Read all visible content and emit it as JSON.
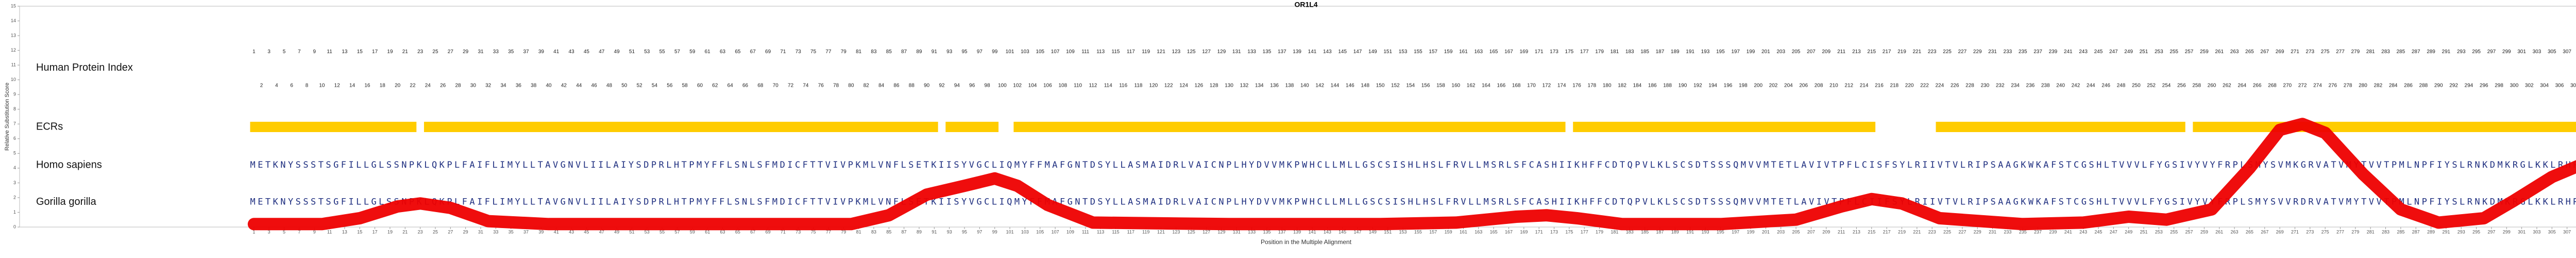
{
  "chart_data": {
    "type": "line",
    "title": "OR1L4",
    "x_label": "Position in the Multiple Alignment",
    "y_label": "Relative Substitution Score",
    "xlim": [
      -30,
      312
    ],
    "ylim": [
      0,
      15
    ],
    "yticks": [
      0,
      1,
      2,
      3,
      4,
      5,
      6,
      7,
      8,
      9,
      10,
      11,
      12,
      13,
      14,
      15
    ],
    "xticks": [
      1,
      3,
      5,
      7,
      9,
      11,
      13,
      15,
      17,
      19,
      21,
      23,
      25,
      27,
      29,
      31,
      33,
      35,
      37,
      39,
      41,
      43,
      45,
      47,
      49,
      51,
      53,
      55,
      57,
      59,
      61,
      63,
      65,
      67,
      69,
      71,
      73,
      75,
      77,
      79,
      81,
      83,
      85,
      87,
      89,
      91,
      93,
      95,
      97,
      99,
      101,
      103,
      105,
      107,
      109,
      111,
      113,
      115,
      117,
      119,
      121,
      123,
      125,
      127,
      129,
      131,
      133,
      135,
      137,
      139,
      141,
      143,
      145,
      147,
      149,
      151,
      153,
      155,
      157,
      159,
      161,
      163,
      165,
      167,
      169,
      171,
      173,
      175,
      177,
      179,
      181,
      183,
      185,
      187,
      189,
      191,
      193,
      195,
      197,
      199,
      201,
      203,
      205,
      207,
      209,
      211,
      213,
      215,
      217,
      219,
      221,
      223,
      225,
      227,
      229,
      231,
      233,
      235,
      237,
      239,
      241,
      243,
      245,
      247,
      249,
      251,
      253,
      255,
      257,
      259,
      261,
      263,
      265,
      267,
      269,
      271,
      273,
      275,
      277,
      279,
      281,
      283,
      285,
      287,
      289,
      291,
      293,
      295,
      297,
      299,
      301,
      303,
      305,
      307,
      309,
      311
    ],
    "series": [
      {
        "color": "#ee0000",
        "x": [
          1,
          10,
          15,
          20,
          23,
          27,
          32,
          40,
          60,
          80,
          85,
          90,
          95,
          99,
          102,
          106,
          112,
          130,
          150,
          160,
          168,
          172,
          176,
          182,
          195,
          205,
          211,
          215,
          219,
          224,
          235,
          243,
          249,
          254,
          260,
          265,
          269,
          272,
          275,
          280,
          285,
          290,
          296,
          300,
          305,
          311
        ],
        "values": [
          0.2,
          0.2,
          0.6,
          1.4,
          1.6,
          1.3,
          0.4,
          0.2,
          0.2,
          0.2,
          0.8,
          2.2,
          2.8,
          3.3,
          2.8,
          1.5,
          0.3,
          0.2,
          0.2,
          0.3,
          0.7,
          0.8,
          0.6,
          0.2,
          0.2,
          0.5,
          1.4,
          1.9,
          1.6,
          0.6,
          0.2,
          0.3,
          0.7,
          0.5,
          1.2,
          4,
          6.6,
          7,
          6.4,
          3.6,
          1.2,
          0.3,
          0.6,
          1.8,
          3.4,
          4.7
        ]
      }
    ],
    "human_protein_index": {
      "label": "Human Protein Index",
      "values": [
        1,
        2,
        3,
        4,
        5,
        6,
        7,
        8,
        9,
        10,
        11,
        12,
        13,
        14,
        15,
        16,
        17,
        18,
        19,
        20,
        21,
        22,
        23,
        24,
        25,
        26,
        27,
        28,
        29,
        30,
        31,
        32,
        33,
        34,
        35,
        36,
        37,
        38,
        39,
        40,
        41,
        42,
        43,
        44,
        45,
        46,
        47,
        48,
        49,
        50,
        51,
        52,
        53,
        54,
        55,
        56,
        57,
        58,
        59,
        60,
        61,
        62,
        63,
        64,
        65,
        66,
        67,
        68,
        69,
        70,
        71,
        72,
        73,
        74,
        75,
        76,
        77,
        78,
        79,
        80,
        81,
        82,
        83,
        84,
        85,
        86,
        87,
        88,
        89,
        90,
        91,
        92,
        93,
        94,
        95,
        96,
        97,
        98,
        99,
        100,
        101,
        102,
        103,
        104,
        105,
        106,
        107,
        108,
        109,
        110,
        111,
        112,
        113,
        114,
        115,
        116,
        117,
        118,
        119,
        120,
        121,
        122,
        123,
        124,
        125,
        126,
        127,
        128,
        129,
        130,
        131,
        132,
        133,
        134,
        135,
        136,
        137,
        138,
        139,
        140,
        141,
        142,
        143,
        144,
        145,
        146,
        147,
        148,
        149,
        150,
        151,
        152,
        153,
        154,
        155,
        156,
        157,
        158,
        159,
        160,
        161,
        162,
        163,
        164,
        165,
        166,
        167,
        168,
        169,
        170,
        171,
        172,
        173,
        174,
        175,
        176,
        177,
        178,
        179,
        180,
        181,
        182,
        183,
        184,
        185,
        186,
        187,
        188,
        189,
        190,
        191,
        192,
        193,
        194,
        195,
        196,
        197,
        198,
        199,
        200,
        201,
        202,
        203,
        204,
        205,
        206,
        207,
        208,
        209,
        210,
        211,
        212,
        213,
        214,
        215,
        216,
        217,
        218,
        219,
        220,
        221,
        222,
        223,
        224,
        225,
        226,
        227,
        228,
        229,
        230,
        231,
        232,
        233,
        234,
        235,
        236,
        237,
        238,
        239,
        240,
        241,
        242,
        243,
        244,
        245,
        246,
        247,
        248,
        249,
        250,
        251,
        252,
        253,
        254,
        255,
        256,
        257,
        258,
        259,
        260,
        261,
        262,
        263,
        264,
        265,
        266,
        267,
        268,
        269,
        270,
        271,
        272,
        273,
        274,
        275,
        276,
        277,
        278,
        279,
        280,
        281,
        282,
        283,
        284,
        285,
        286,
        287,
        288,
        289,
        290,
        291,
        292,
        293,
        294,
        295,
        296,
        297,
        298,
        299,
        300,
        301,
        302,
        303,
        304,
        305,
        306,
        307,
        308,
        309,
        310,
        311
      ]
    },
    "ecrs": {
      "label": "ECRs",
      "color": "#ffcc00",
      "segments": [
        [
          1,
          22
        ],
        [
          24,
          91
        ],
        [
          93,
          99
        ],
        [
          102,
          174
        ],
        [
          176,
          215
        ],
        [
          224,
          256
        ],
        [
          258,
          311
        ]
      ]
    },
    "sequences": [
      {
        "name": "Homo sapiens",
        "sequence": "METKNYSSSTSGFILLGLSSNPKLQKPLFAIFLIMYLLTAVGNVLIILAIYSDPRLHTPMYFFLSNLSFMDICFTTVIVPKMLVNFLSETKIISYVGCLIQMYFFMAFGNTDSYLLASMAIDRLVAICNPLHYDVVMKPWHCLLMLLGSCSISHLHSLFRVLLMSRLSFCASHIIKHFFCDTQPVLKLSCSDTSSSQMVVMTETLAVIVTPFLCISFSYLRIIVTVLRIPSAAGKWKAFSTCGSHLTVVVLFYGSIVYVYFRPLSMYSVMKGRVATVMYTVVTPMLNPFIYSLRNKDMKRGLKKLRHRIYS"
      },
      {
        "name": "Gorilla gorilla",
        "sequence": "METKNYSSSTSGFILLGLSSNPKLQKPLFAIFLIMYLLTAVGNVLIILAIYSDPRLHTPMYFFLSNLSFMDICFTTVIVPKMLVNFLSETKIISYVGCLIQMYFFMAFGNTDSYLLASMAIDRLVAICNPLHYDVVMKPWHCLLMLLGSCSISHLHSLFRVLLMSRLSFCASHIIKHFFCDTQPVLKLSCSDTSSSQMVVMTETLAVIVTPFLCIIFSYLRIIVTVLRIPSAAGKWKAFSTCGSHLTVVVLFYGSIVYVYFRPLSMYSVVRDRVATVMYTVVTPMLNPFIYSLRNKDMKRGLKKLRHRIYS"
      }
    ]
  }
}
